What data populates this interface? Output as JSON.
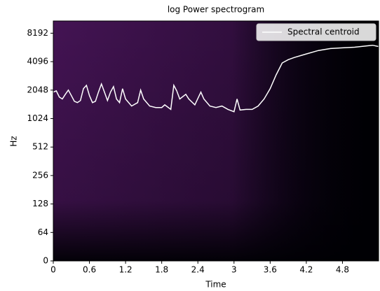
{
  "chart_data": {
    "type": "line",
    "title": "log Power spectrogram",
    "xlabel": "Time",
    "ylabel": "Hz",
    "yscale": "symlog",
    "log_base": 2,
    "linthresh": 64,
    "xlim": [
      0,
      5.4
    ],
    "xticks": [
      0,
      0.6,
      1.2,
      1.8,
      2.4,
      3,
      3.6,
      4.2,
      4.8
    ],
    "ylim": [
      0,
      11025
    ],
    "yticks": [
      0,
      64,
      128,
      256,
      512,
      1024,
      2048,
      4096,
      8192
    ],
    "legend": "upper right",
    "x": [
      0,
      0.05,
      0.1,
      0.15,
      0.2,
      0.25,
      0.3,
      0.35,
      0.4,
      0.45,
      0.5,
      0.55,
      0.6,
      0.65,
      0.7,
      0.75,
      0.8,
      0.85,
      0.9,
      0.95,
      1.0,
      1.05,
      1.1,
      1.15,
      1.2,
      1.3,
      1.4,
      1.45,
      1.5,
      1.6,
      1.7,
      1.8,
      1.85,
      1.95,
      2.0,
      2.05,
      2.1,
      2.2,
      2.25,
      2.35,
      2.45,
      2.5,
      2.6,
      2.7,
      2.8,
      2.9,
      3.0,
      3.05,
      3.1,
      3.2,
      3.3,
      3.4,
      3.5,
      3.6,
      3.7,
      3.8,
      3.9,
      4.0,
      4.2,
      4.4,
      4.6,
      4.8,
      5.0,
      5.2,
      5.3,
      5.4
    ],
    "series": [
      {
        "name": "Spectral centroid",
        "color": "#ffffff",
        "values": [
          1950,
          2010,
          1730,
          1650,
          1850,
          2050,
          1790,
          1560,
          1510,
          1590,
          2120,
          2300,
          1790,
          1510,
          1560,
          1950,
          2380,
          1950,
          1590,
          1950,
          2230,
          1650,
          1510,
          2120,
          1650,
          1390,
          1510,
          2050,
          1650,
          1390,
          1340,
          1340,
          1430,
          1280,
          2300,
          2010,
          1650,
          1850,
          1650,
          1430,
          1950,
          1650,
          1390,
          1340,
          1390,
          1280,
          1210,
          1650,
          1260,
          1280,
          1280,
          1390,
          1650,
          2120,
          2970,
          3970,
          4300,
          4530,
          4940,
          5370,
          5640,
          5730,
          5820,
          6010,
          6100,
          5920
        ]
      }
    ]
  }
}
